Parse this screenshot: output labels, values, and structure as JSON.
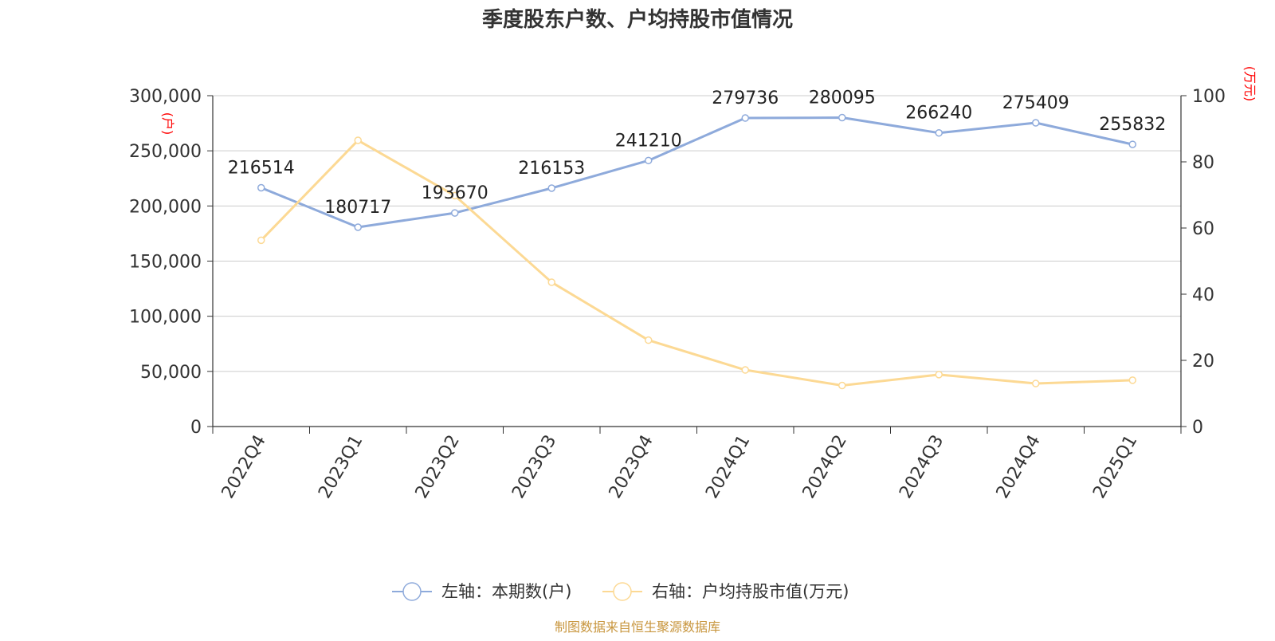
{
  "chart_data": {
    "type": "line",
    "title": "季度股东户数、户均持股市值情况",
    "categories": [
      "2022Q4",
      "2023Q1",
      "2023Q2",
      "2023Q3",
      "2023Q4",
      "2024Q1",
      "2024Q2",
      "2024Q3",
      "2024Q4",
      "2025Q1"
    ],
    "y_left": {
      "unit_label": "(户)",
      "range": [
        0,
        300000
      ],
      "ticks": [
        "0",
        "50,000",
        "100,000",
        "150,000",
        "200,000",
        "250,000",
        "300,000"
      ]
    },
    "y_right": {
      "unit_label": "(万元)",
      "range": [
        0,
        100
      ],
      "ticks": [
        "0",
        "20",
        "40",
        "60",
        "80",
        "100"
      ]
    },
    "grid": true,
    "legend_position": "bottom",
    "series": [
      {
        "name": "左轴：本期数(户)",
        "axis": "left",
        "color": "#8eaadb",
        "values": [
          216514,
          180717,
          193670,
          216153,
          241210,
          279736,
          280095,
          266240,
          275409,
          255832
        ],
        "data_labels": [
          "216514",
          "180717",
          "193670",
          "216153",
          "241210",
          "279736",
          "280095",
          "266240",
          "275409",
          "255832"
        ]
      },
      {
        "name": "右轴：户均持股市值(万元)",
        "axis": "right",
        "color": "#fcd994",
        "values": [
          56.3,
          86.5,
          69.8,
          43.6,
          26.1,
          17.1,
          12.4,
          15.7,
          13.0,
          14.0
        ]
      }
    ],
    "source": "制图数据来自恒生聚源数据库"
  }
}
